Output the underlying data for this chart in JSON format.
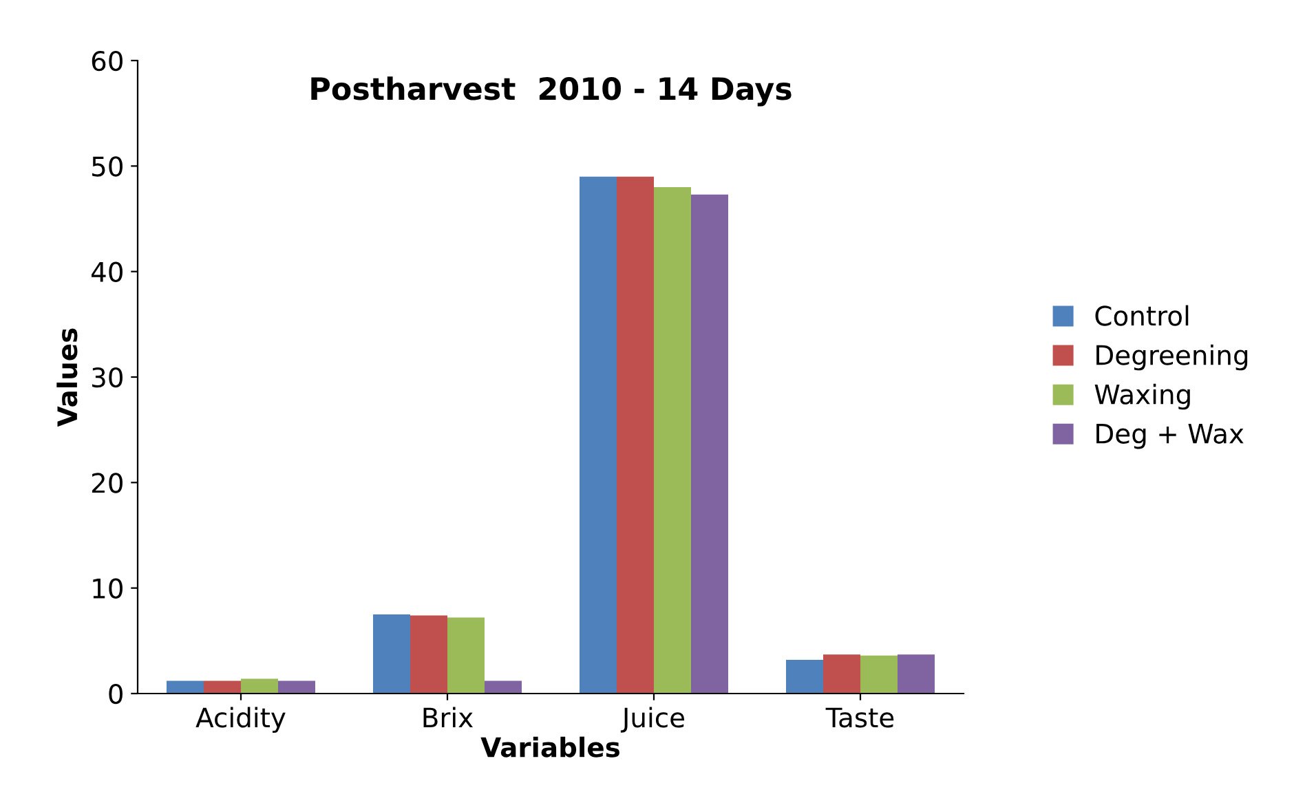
{
  "chart_data": {
    "type": "bar",
    "title": "Postharvest  2010 - 14 Days",
    "xlabel": "Variables",
    "ylabel": "Values",
    "categories": [
      "Acidity",
      "Brix",
      "Juice",
      "Taste"
    ],
    "series": [
      {
        "name": "Control",
        "color": "#4f81bd",
        "values": [
          1.2,
          7.5,
          49.0,
          3.2
        ]
      },
      {
        "name": "Degreening",
        "color": "#c0504d",
        "values": [
          1.2,
          7.4,
          49.0,
          3.7
        ]
      },
      {
        "name": "Waxing",
        "color": "#9bbb59",
        "values": [
          1.4,
          7.2,
          48.0,
          3.6
        ]
      },
      {
        "name": "Deg + Wax",
        "color": "#8064a2",
        "values": [
          1.2,
          1.2,
          47.3,
          3.7
        ]
      }
    ],
    "ylim": [
      0,
      60
    ],
    "yticks": [
      0,
      10,
      20,
      30,
      40,
      50,
      60
    ],
    "grid": false,
    "legend": "right"
  }
}
